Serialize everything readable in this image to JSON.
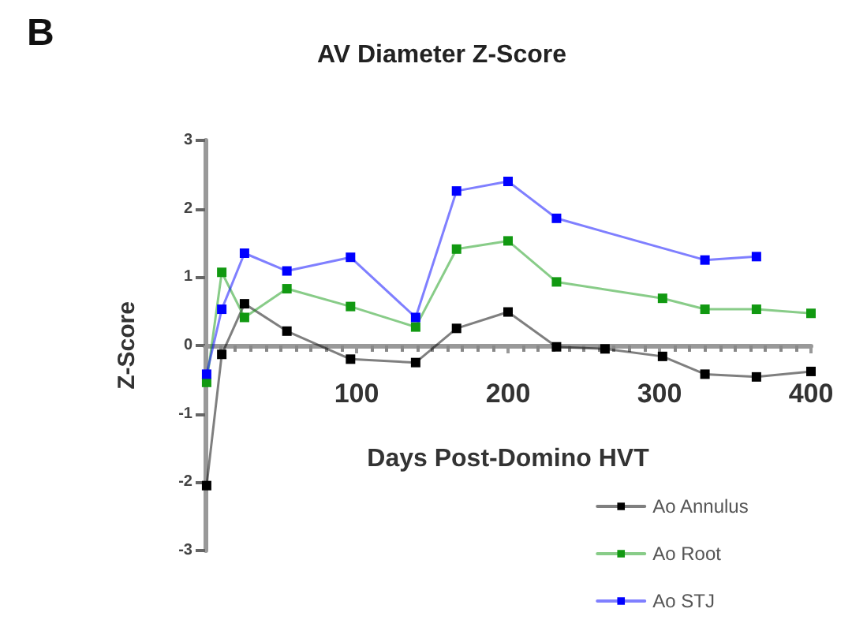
{
  "chart_data": {
    "type": "line",
    "title": "AV Diameter Z-Score",
    "xlabel": "Days Post-Domino HVT",
    "ylabel": "Z-Score",
    "annotations": [
      "B"
    ],
    "xlim": [
      0,
      400
    ],
    "xticks": [
      {
        "value": 0,
        "label": null
      },
      100,
      200,
      300,
      400
    ],
    "ylim": [
      -3,
      3
    ],
    "yticks": [
      -3,
      -2,
      -1,
      0,
      1,
      2,
      3
    ],
    "series": [
      {
        "name": "Ao Annulus",
        "color": "#000000",
        "x": [
          1,
          11,
          26,
          54,
          96,
          139,
          166,
          200,
          232,
          264,
          302,
          330,
          364,
          400
        ],
        "values": [
          -2.05,
          -0.13,
          0.61,
          0.21,
          -0.2,
          -0.25,
          0.25,
          0.49,
          -0.02,
          -0.05,
          -0.16,
          -0.42,
          -0.46,
          -0.38
        ]
      },
      {
        "name": "Ao Root",
        "color": "#119911",
        "x": [
          1,
          11,
          26,
          54,
          96,
          139,
          166,
          200,
          232,
          302,
          330,
          364,
          400
        ],
        "values": [
          -0.54,
          1.07,
          0.41,
          0.83,
          0.57,
          0.27,
          1.41,
          1.53,
          0.93,
          0.69,
          0.53,
          0.53,
          0.47
        ]
      },
      {
        "name": "Ao STJ",
        "color": "#0000ff",
        "x": [
          1,
          11,
          26,
          54,
          96,
          139,
          166,
          200,
          232,
          330,
          364
        ],
        "values": [
          -0.42,
          0.53,
          1.35,
          1.09,
          1.29,
          0.41,
          2.26,
          2.4,
          1.86,
          1.25,
          1.3
        ]
      }
    ],
    "marker": "square",
    "line_style": "solid",
    "grid": false,
    "legend": "bottom right"
  }
}
